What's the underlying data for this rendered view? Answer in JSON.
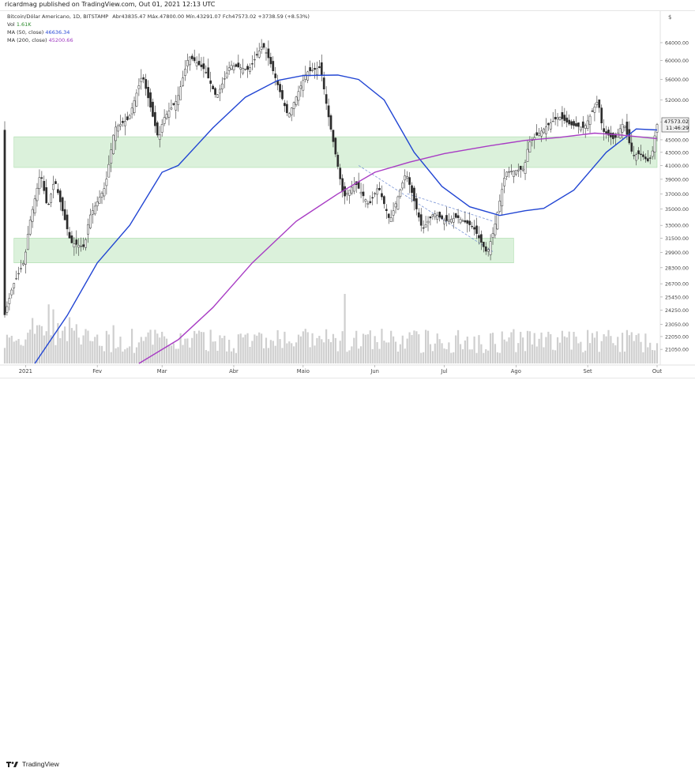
{
  "header": {
    "published": "ricardmag published on TradingView.com, Out 01, 2021 12:13 UTC"
  },
  "legend": {
    "symbol": "Bitcoin/Dólar Americano, 1D, BITSTAMP",
    "ohlc_text": "Abr43835.47  Máx.47800.00  Mín.43291.07  Fch47573.02  +3738.59 (+8.53%)",
    "volume_label": "Vol",
    "volume_value": "1.61K",
    "ma50_label": "MA (50, close)",
    "ma50_value": "46636.34",
    "ma200_label": "MA (200, close)",
    "ma200_value": "45200.66"
  },
  "axis": {
    "currency": "$",
    "y_ticks": [
      "64000.00",
      "60000.00",
      "56000.00",
      "52000.00",
      "48000.00",
      "45000.00",
      "43000.00",
      "41000.00",
      "39000.00",
      "37000.00",
      "35000.00",
      "33000.00",
      "31500.00",
      "29900.00",
      "28300.00",
      "26700.00",
      "25450.00",
      "24250.00",
      "23050.00",
      "22050.00",
      "21050.00"
    ],
    "x_ticks": [
      "2021",
      "Fev",
      "Mar",
      "Abr",
      "Maio",
      "Jun",
      "Jul",
      "Ago",
      "Set",
      "Out"
    ],
    "price_tag": "47573.02",
    "time_tag": "11:46:29"
  },
  "footer": {
    "brand": "TradingView"
  },
  "colors": {
    "up": "#3a3a3a",
    "down": "#2a2a2a",
    "ma50": "#2145d3",
    "ma200": "#a83cc4",
    "zone": "#cfeccf",
    "volume": "#cfcfcf"
  },
  "chart_data": {
    "type": "candlestick",
    "title": "Bitcoin/Dólar Americano, 1D, BITSTAMP",
    "ylim": [
      20000,
      67000
    ],
    "y_scale": "log",
    "x_range": [
      "2020-12-23",
      "2021-10-01"
    ],
    "support_zones": [
      {
        "from": "2020-12-27",
        "to": "2021-07-31",
        "low": 28800,
        "high": 31500
      },
      {
        "from": "2020-12-27",
        "to": "2021-10-01",
        "low": 40700,
        "high": 45500
      }
    ],
    "trend_channel": [
      {
        "from": [
          "2021-05-25",
          41000
        ],
        "to": [
          "2021-07-22",
          30000
        ]
      },
      {
        "from": [
          "2021-06-15",
          37000
        ],
        "to": [
          "2021-07-22",
          33500
        ]
      }
    ],
    "price_path": [
      [
        "2020-12-23",
        23500
      ],
      [
        "2020-12-27",
        26500
      ],
      [
        "2021-01-01",
        29000
      ],
      [
        "2021-01-03",
        33000
      ],
      [
        "2021-01-08",
        40000
      ],
      [
        "2021-01-11",
        35000
      ],
      [
        "2021-01-14",
        39000
      ],
      [
        "2021-01-21",
        31000
      ],
      [
        "2021-01-27",
        30500
      ],
      [
        "2021-01-29",
        34000
      ],
      [
        "2021-02-05",
        38000
      ],
      [
        "2021-02-09",
        47000
      ],
      [
        "2021-02-15",
        48500
      ],
      [
        "2021-02-21",
        57000
      ],
      [
        "2021-02-28",
        45000
      ],
      [
        "2021-03-02",
        48500
      ],
      [
        "2021-03-08",
        52000
      ],
      [
        "2021-03-13",
        61000
      ],
      [
        "2021-03-20",
        58000
      ],
      [
        "2021-03-25",
        52500
      ],
      [
        "2021-03-31",
        59000
      ],
      [
        "2021-04-08",
        58000
      ],
      [
        "2021-04-14",
        63500
      ],
      [
        "2021-04-17",
        60000
      ],
      [
        "2021-04-25",
        49000
      ],
      [
        "2021-05-03",
        57500
      ],
      [
        "2021-05-09",
        58500
      ],
      [
        "2021-05-12",
        50000
      ],
      [
        "2021-05-19",
        36500
      ],
      [
        "2021-05-24",
        38500
      ],
      [
        "2021-05-30",
        35500
      ],
      [
        "2021-06-03",
        38000
      ],
      [
        "2021-06-08",
        33500
      ],
      [
        "2021-06-15",
        40000
      ],
      [
        "2021-06-22",
        32500
      ],
      [
        "2021-06-27",
        34500
      ],
      [
        "2021-07-02",
        33500
      ],
      [
        "2021-07-07",
        34000
      ],
      [
        "2021-07-14",
        32800
      ],
      [
        "2021-07-20",
        29800
      ],
      [
        "2021-07-23",
        32500
      ],
      [
        "2021-07-28",
        40000
      ],
      [
        "2021-08-05",
        40500
      ],
      [
        "2021-08-07",
        44500
      ],
      [
        "2021-08-14",
        47000
      ],
      [
        "2021-08-20",
        49000
      ],
      [
        "2021-08-25",
        47500
      ],
      [
        "2021-08-31",
        47000
      ],
      [
        "2021-09-06",
        52000
      ],
      [
        "2021-09-08",
        46500
      ],
      [
        "2021-09-13",
        45000
      ],
      [
        "2021-09-17",
        48000
      ],
      [
        "2021-09-21",
        42500
      ],
      [
        "2021-09-24",
        42800
      ],
      [
        "2021-09-28",
        41500
      ],
      [
        "2021-09-30",
        43800
      ],
      [
        "2021-10-01",
        47573.02
      ]
    ],
    "series": [
      {
        "name": "MA (50, close)",
        "points": [
          [
            "2021-01-05",
            20000
          ],
          [
            "2021-01-19",
            23800
          ],
          [
            "2021-02-01",
            28800
          ],
          [
            "2021-02-15",
            33000
          ],
          [
            "2021-03-01",
            40000
          ],
          [
            "2021-03-08",
            41000
          ],
          [
            "2021-03-23",
            47000
          ],
          [
            "2021-04-06",
            52500
          ],
          [
            "2021-04-20",
            55800
          ],
          [
            "2021-05-01",
            56800
          ],
          [
            "2021-05-16",
            56900
          ],
          [
            "2021-05-25",
            56000
          ],
          [
            "2021-06-05",
            52000
          ],
          [
            "2021-06-18",
            43000
          ],
          [
            "2021-06-30",
            38000
          ],
          [
            "2021-07-12",
            35300
          ],
          [
            "2021-07-25",
            34200
          ],
          [
            "2021-08-05",
            34800
          ],
          [
            "2021-08-13",
            35100
          ],
          [
            "2021-08-26",
            37500
          ],
          [
            "2021-09-09",
            43000
          ],
          [
            "2021-09-22",
            46800
          ],
          [
            "2021-10-01",
            46636.34
          ]
        ]
      },
      {
        "name": "MA (200, close)",
        "points": [
          [
            "2021-02-19",
            20000
          ],
          [
            "2021-03-08",
            21800
          ],
          [
            "2021-03-23",
            24500
          ],
          [
            "2021-04-09",
            28800
          ],
          [
            "2021-04-28",
            33500
          ],
          [
            "2021-05-16",
            37000
          ],
          [
            "2021-06-01",
            40000
          ],
          [
            "2021-06-16",
            41500
          ],
          [
            "2021-07-01",
            42800
          ],
          [
            "2021-07-20",
            44000
          ],
          [
            "2021-08-05",
            44900
          ],
          [
            "2021-08-20",
            45400
          ],
          [
            "2021-09-04",
            46100
          ],
          [
            "2021-09-15",
            45800
          ],
          [
            "2021-10-01",
            45200.66
          ]
        ]
      }
    ]
  }
}
